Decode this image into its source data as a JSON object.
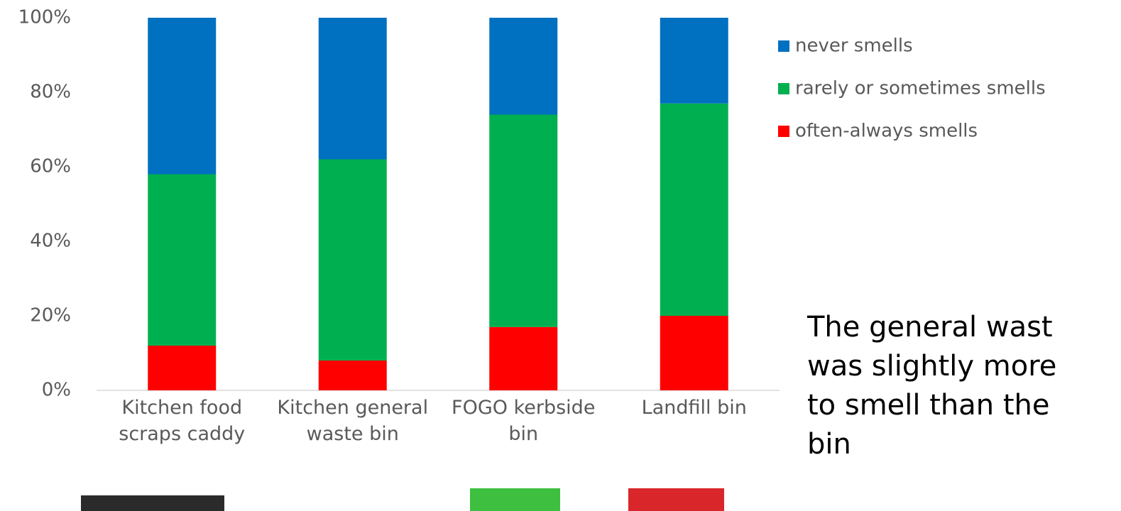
{
  "chart_data": {
    "type": "stacked_bar",
    "categories": [
      "Kitchen food scraps caddy",
      "Kitchen general waste bin",
      "FOGO kerbside bin",
      "Landfill bin"
    ],
    "series": [
      {
        "name": "often-always smells",
        "color": "#ff0000",
        "values": [
          12,
          8,
          17,
          20
        ]
      },
      {
        "name": "rarely or sometimes smells",
        "color": "#00b050",
        "values": [
          46,
          54,
          57,
          57
        ]
      },
      {
        "name": "never smells",
        "color": "#0070c0",
        "values": [
          42,
          38,
          26,
          23
        ]
      }
    ],
    "ylim": [
      0,
      100
    ],
    "yticks": [
      {
        "value": 0,
        "label": "0%"
      },
      {
        "value": 20,
        "label": "20%"
      },
      {
        "value": 40,
        "label": "40%"
      },
      {
        "value": 60,
        "label": "60%"
      },
      {
        "value": 80,
        "label": "80%"
      },
      {
        "value": 100,
        "label": "100%"
      }
    ],
    "grid": false,
    "legend": "right"
  },
  "side_text": [
    "The general wast",
    "was slightly more",
    "to smell than the",
    "bin"
  ]
}
